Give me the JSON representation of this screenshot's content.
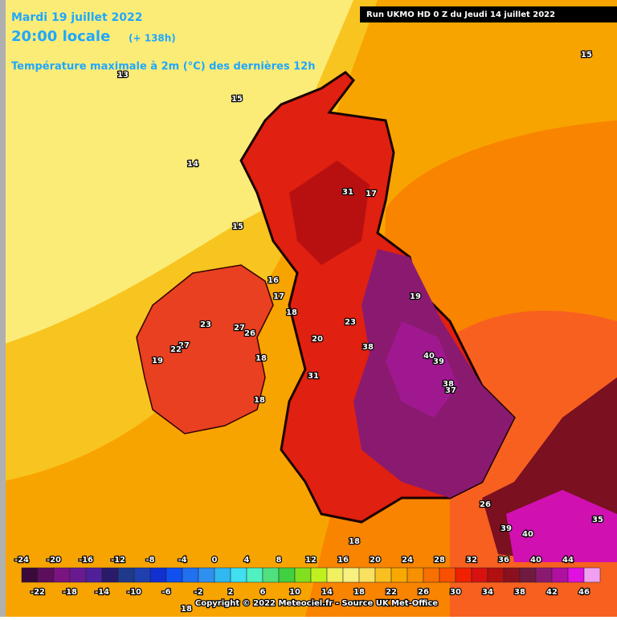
{
  "header": {
    "date": "Mardi 19 juillet 2022",
    "time": "20:00 locale",
    "lead": "(+ 138h)",
    "parameter": "Température maximale à 2m (°C) des dernières 12h",
    "run": "Run UKMO HD 0 Z du Jeudi 14 juillet 2022"
  },
  "map": {
    "labels": [
      13,
      15,
      14,
      15,
      15,
      31,
      17,
      16,
      17,
      18,
      19,
      23,
      27,
      26,
      27,
      22,
      19,
      18,
      23,
      20,
      38,
      40,
      39,
      31,
      18,
      38,
      37,
      26,
      39,
      40,
      35,
      18,
      18
    ]
  },
  "legend": {
    "values": [
      -24,
      -22,
      -20,
      -18,
      -16,
      -14,
      -12,
      -10,
      -8,
      -6,
      -4,
      -2,
      0,
      2,
      4,
      6,
      8,
      10,
      12,
      14,
      16,
      18,
      20,
      22,
      24,
      26,
      28,
      30,
      32,
      34,
      36,
      38,
      40,
      42,
      44,
      46
    ],
    "colors": [
      "#3a0a3a",
      "#5c0f5c",
      "#7a1480",
      "#6a1a90",
      "#50209a",
      "#2a1a6a",
      "#1f3a8a",
      "#2040b0",
      "#1030d0",
      "#1050f0",
      "#2070f0",
      "#3090f0",
      "#30b8f0",
      "#40e0f0",
      "#50f0c0",
      "#50e080",
      "#40d040",
      "#80e020",
      "#c0f020",
      "#f0f060",
      "#f8f080",
      "#f8e060",
      "#f8c020",
      "#f8a800",
      "#f89000",
      "#f87000",
      "#f85000",
      "#f02000",
      "#d81010",
      "#b01010",
      "#8a1020",
      "#701a40",
      "#8a1a70",
      "#b010a0",
      "#e010e0",
      "#f0a0f0"
    ]
  },
  "footer": {
    "copyright": "Copyright © 2022 Meteociel.fr - Source UK Met-Office"
  }
}
